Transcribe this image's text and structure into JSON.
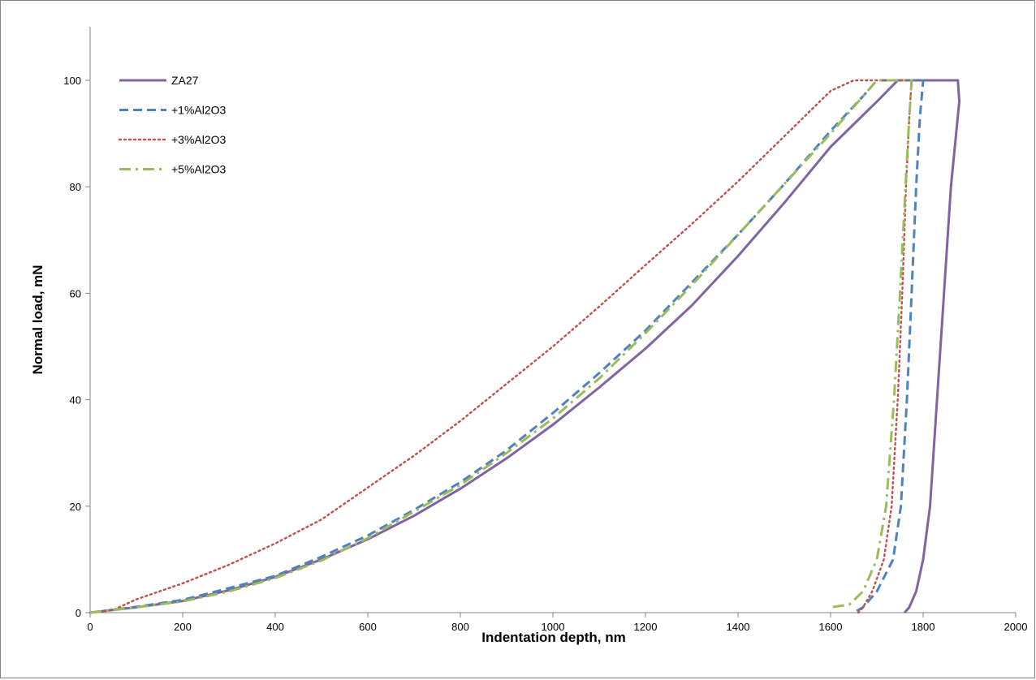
{
  "chart_data": {
    "type": "line",
    "title": "",
    "xlabel": "Indentation depth, nm",
    "ylabel": "Normal load, mN",
    "xlim": [
      0,
      2000
    ],
    "ylim": [
      0,
      100
    ],
    "x_ticks": [
      0,
      200,
      400,
      600,
      800,
      1000,
      1200,
      1400,
      1600,
      1800,
      2000
    ],
    "y_ticks": [
      0,
      20,
      40,
      60,
      80,
      100
    ],
    "x_tick_labels": [
      "0",
      "200",
      "400",
      "600",
      "800",
      "1000",
      "1200",
      "1400",
      "1600",
      "1800",
      "2000"
    ],
    "y_tick_labels": [
      "0",
      "20",
      "40",
      "60",
      "80",
      "100"
    ],
    "grid": false,
    "legend_position": "top-left",
    "series": [
      {
        "name": "ZA27",
        "color": "#8064A2",
        "style": "solid",
        "points": [
          [
            0,
            0
          ],
          [
            100,
            1
          ],
          [
            200,
            2.2
          ],
          [
            300,
            4.2
          ],
          [
            400,
            6.7
          ],
          [
            500,
            10
          ],
          [
            600,
            13.8
          ],
          [
            700,
            18.2
          ],
          [
            800,
            23.3
          ],
          [
            900,
            29
          ],
          [
            1000,
            35.3
          ],
          [
            1100,
            42.3
          ],
          [
            1200,
            49.6
          ],
          [
            1300,
            57.7
          ],
          [
            1400,
            67
          ],
          [
            1500,
            77
          ],
          [
            1600,
            87.5
          ],
          [
            1700,
            96
          ],
          [
            1745,
            100
          ],
          [
            1875,
            100
          ],
          [
            1878,
            96
          ],
          [
            1860,
            80
          ],
          [
            1845,
            60
          ],
          [
            1830,
            40
          ],
          [
            1815,
            20
          ],
          [
            1800,
            10
          ],
          [
            1785,
            4
          ],
          [
            1770,
            1
          ],
          [
            1760,
            0
          ]
        ]
      },
      {
        "name": "+1%Al2O3",
        "color": "#4F81BD",
        "style": "dashed",
        "points": [
          [
            0,
            0
          ],
          [
            100,
            1.1
          ],
          [
            200,
            2.4
          ],
          [
            300,
            4.6
          ],
          [
            400,
            6.9
          ],
          [
            500,
            10.5
          ],
          [
            600,
            14.5
          ],
          [
            700,
            19.3
          ],
          [
            800,
            24.5
          ],
          [
            900,
            30.5
          ],
          [
            1000,
            37.5
          ],
          [
            1100,
            45
          ],
          [
            1200,
            53
          ],
          [
            1300,
            62
          ],
          [
            1400,
            71
          ],
          [
            1500,
            80.5
          ],
          [
            1600,
            90.5
          ],
          [
            1670,
            97
          ],
          [
            1700,
            100
          ],
          [
            1800,
            100
          ],
          [
            1793,
            93
          ],
          [
            1785,
            80
          ],
          [
            1775,
            60
          ],
          [
            1765,
            40
          ],
          [
            1752,
            20
          ],
          [
            1735,
            10
          ],
          [
            1700,
            4
          ],
          [
            1670,
            1
          ],
          [
            1650,
            0
          ]
        ]
      },
      {
        "name": "+3%Al2O3",
        "color": "#C0504D",
        "style": "dotted",
        "points": [
          [
            0,
            0
          ],
          [
            50,
            0.5
          ],
          [
            100,
            2.5
          ],
          [
            200,
            5.5
          ],
          [
            300,
            9
          ],
          [
            400,
            13
          ],
          [
            500,
            17.5
          ],
          [
            600,
            23.5
          ],
          [
            700,
            29.5
          ],
          [
            800,
            36
          ],
          [
            900,
            43
          ],
          [
            1000,
            50
          ],
          [
            1100,
            57.5
          ],
          [
            1200,
            65.3
          ],
          [
            1300,
            73
          ],
          [
            1400,
            81
          ],
          [
            1500,
            89.5
          ],
          [
            1600,
            98
          ],
          [
            1650,
            100
          ],
          [
            1775,
            100
          ],
          [
            1770,
            93
          ],
          [
            1763,
            80
          ],
          [
            1755,
            60
          ],
          [
            1745,
            40
          ],
          [
            1732,
            20
          ],
          [
            1715,
            10
          ],
          [
            1690,
            4
          ],
          [
            1670,
            1
          ],
          [
            1660,
            0
          ]
        ]
      },
      {
        "name": "+5%Al2O3",
        "color": "#9BBB59",
        "style": "dash-dot",
        "points": [
          [
            0,
            0
          ],
          [
            100,
            1
          ],
          [
            200,
            2.1
          ],
          [
            300,
            4
          ],
          [
            400,
            6.5
          ],
          [
            500,
            9.8
          ],
          [
            600,
            14
          ],
          [
            700,
            19
          ],
          [
            800,
            24
          ],
          [
            900,
            30
          ],
          [
            1000,
            36.5
          ],
          [
            1100,
            44
          ],
          [
            1200,
            52.5
          ],
          [
            1300,
            61.5
          ],
          [
            1400,
            71
          ],
          [
            1500,
            80.5
          ],
          [
            1600,
            90
          ],
          [
            1680,
            98
          ],
          [
            1700,
            100
          ],
          [
            1775,
            100
          ],
          [
            1770,
            93
          ],
          [
            1762,
            80
          ],
          [
            1750,
            60
          ],
          [
            1737,
            40
          ],
          [
            1720,
            20
          ],
          [
            1700,
            10
          ],
          [
            1670,
            4
          ],
          [
            1640,
            1.5
          ],
          [
            1600,
            1
          ]
        ]
      }
    ]
  }
}
